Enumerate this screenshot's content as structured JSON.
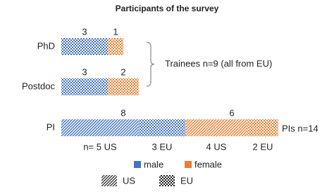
{
  "chart_data": {
    "type": "stacked-bar-horizontal",
    "title": "Participants of the survey",
    "categories": [
      "PhD",
      "Postdoc",
      "PI"
    ],
    "origins": [
      {
        "name": "US",
        "hatch": "diagonal"
      },
      {
        "name": "EU",
        "hatch": "checker"
      }
    ],
    "series": [
      {
        "name": "male",
        "color": "#4472c4",
        "values_by_origin": [
          [
            0,
            0,
            5
          ],
          [
            3,
            3,
            3
          ]
        ],
        "totals": [
          3,
          3,
          8
        ]
      },
      {
        "name": "female",
        "color": "#ed7d31",
        "values_by_origin": [
          [
            0,
            0,
            4
          ],
          [
            1,
            2,
            2
          ]
        ],
        "totals": [
          1,
          2,
          6
        ]
      }
    ],
    "segment_labels": [
      "n= 5 US",
      "3 EU",
      "4 US",
      "2 EU"
    ],
    "annotations": [
      "Trainees n=9 (all from EU)",
      "PIs n=14"
    ]
  }
}
